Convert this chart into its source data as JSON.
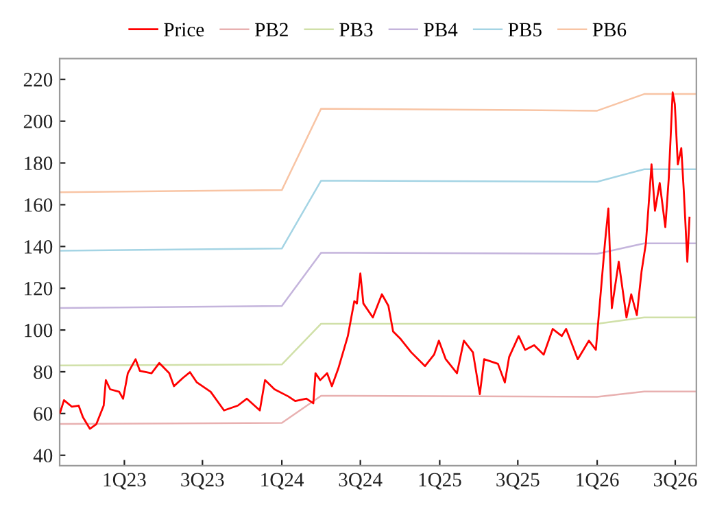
{
  "chart_data": {
    "type": "line",
    "xlim": [
      "2022-08-04",
      "2026-08-19"
    ],
    "xticks": [
      {
        "value": "2023-01-01",
        "label": "1Q23"
      },
      {
        "value": "2023-07-01",
        "label": "3Q23"
      },
      {
        "value": "2024-01-01",
        "label": "1Q24"
      },
      {
        "value": "2024-07-01",
        "label": "3Q24"
      },
      {
        "value": "2025-01-01",
        "label": "1Q25"
      },
      {
        "value": "2025-07-01",
        "label": "3Q25"
      },
      {
        "value": "2026-01-01",
        "label": "1Q26"
      },
      {
        "value": "2026-07-01",
        "label": "3Q26"
      }
    ],
    "ylim": [
      35,
      230
    ],
    "yticks": [
      40,
      60,
      80,
      100,
      120,
      140,
      160,
      180,
      200,
      220
    ],
    "grid": false,
    "legend": "top",
    "marker": "none",
    "line_style": "solid",
    "series": [
      {
        "name": "Price",
        "color": "#ff0000",
        "x": [
          "2022-08-05",
          "2022-08-14",
          "2022-09-01",
          "2022-09-17",
          "2022-09-27",
          "2022-10-13",
          "2022-10-28",
          "2022-11-14",
          "2022-11-19",
          "2022-11-29",
          "2022-12-20",
          "2022-12-29",
          "2023-01-09",
          "2023-01-27",
          "2023-02-06",
          "2023-03-05",
          "2023-03-23",
          "2023-04-15",
          "2023-04-26",
          "2023-05-17",
          "2023-06-02",
          "2023-06-18",
          "2023-07-20",
          "2023-08-20",
          "2023-09-21",
          "2023-10-12",
          "2023-11-11",
          "2023-11-23",
          "2023-12-15",
          "2024-01-16",
          "2024-02-01",
          "2024-02-27",
          "2024-03-14",
          "2024-03-19",
          "2024-03-30",
          "2024-04-15",
          "2024-04-26",
          "2024-05-11",
          "2024-06-02",
          "2024-06-17",
          "2024-06-23",
          "2024-07-01",
          "2024-07-08",
          "2024-07-30",
          "2024-08-20",
          "2024-09-04",
          "2024-09-15",
          "2024-10-01",
          "2024-10-27",
          "2024-11-28",
          "2024-12-19",
          "2024-12-30",
          "2025-01-15",
          "2025-02-10",
          "2025-02-26",
          "2025-03-19",
          "2025-04-04",
          "2025-04-14",
          "2025-05-16",
          "2025-06-01",
          "2025-06-11",
          "2025-07-03",
          "2025-07-18",
          "2025-08-08",
          "2025-08-30",
          "2025-09-20",
          "2025-10-11",
          "2025-10-21",
          "2025-11-17",
          "2025-12-13",
          "2025-12-29",
          "2026-01-19",
          "2026-01-27",
          "2026-02-04",
          "2026-02-20",
          "2026-03-10",
          "2026-03-21",
          "2026-04-03",
          "2026-04-14",
          "2026-04-24",
          "2026-05-07",
          "2026-05-15",
          "2026-05-26",
          "2026-06-08",
          "2026-06-16",
          "2026-06-25",
          "2026-06-30",
          "2026-07-07",
          "2026-07-15",
          "2026-07-21",
          "2026-07-29",
          "2026-08-03"
        ],
        "values": [
          60.4,
          66.4,
          63.3,
          63.8,
          58.2,
          52.7,
          54.9,
          63.8,
          76,
          71.6,
          70.4,
          67.1,
          79.3,
          86,
          80.4,
          79.3,
          84.2,
          79.3,
          73.1,
          77.1,
          79.8,
          74.9,
          70.4,
          61.5,
          63.8,
          67.1,
          61.5,
          76,
          71.6,
          68.2,
          66,
          67.1,
          64.9,
          79.3,
          76,
          79.3,
          73.1,
          81.6,
          97.1,
          113.8,
          112.7,
          127.1,
          112.7,
          106,
          117.1,
          111.6,
          99.3,
          96,
          89.3,
          82.7,
          88.2,
          94.9,
          86,
          79.3,
          94.9,
          89.3,
          69.3,
          86,
          83.8,
          74.9,
          87.1,
          97.1,
          90.5,
          92.7,
          88.2,
          100.5,
          97.1,
          100.5,
          86,
          94.9,
          90.5,
          141.6,
          158.2,
          110.4,
          132.7,
          106,
          117.1,
          107.1,
          128.2,
          141.6,
          179.3,
          157.1,
          170.4,
          149.3,
          172.7,
          213.8,
          208.2,
          179.3,
          187.1,
          166,
          132.7,
          153.8
        ]
      },
      {
        "name": "PB2",
        "color": "#e8b0b0",
        "x": [
          "2022-08-04",
          "2024-01-01",
          "2024-04-01",
          "2026-01-01",
          "2026-04-20",
          "2026-08-19"
        ],
        "values": [
          55,
          55.5,
          68.5,
          68,
          70.5,
          70.5
        ]
      },
      {
        "name": "PB3",
        "color": "#d0e0a8",
        "x": [
          "2022-08-04",
          "2024-01-01",
          "2024-04-01",
          "2026-01-01",
          "2026-04-20",
          "2026-08-19"
        ],
        "values": [
          83,
          83.5,
          103,
          103,
          106,
          106
        ]
      },
      {
        "name": "PB4",
        "color": "#c4b4dc",
        "x": [
          "2022-08-04",
          "2024-01-01",
          "2024-04-01",
          "2026-01-01",
          "2026-04-20",
          "2026-08-19"
        ],
        "values": [
          110.5,
          111.5,
          137,
          136.5,
          141.5,
          141.5
        ]
      },
      {
        "name": "PB5",
        "color": "#a4d4e4",
        "x": [
          "2022-08-04",
          "2024-01-01",
          "2024-04-01",
          "2026-01-01",
          "2026-04-20",
          "2026-08-19"
        ],
        "values": [
          138,
          139,
          171.5,
          171,
          177,
          177
        ]
      },
      {
        "name": "PB6",
        "color": "#f8c4a4",
        "x": [
          "2022-08-04",
          "2024-01-01",
          "2024-04-01",
          "2026-01-01",
          "2026-04-20",
          "2026-08-19"
        ],
        "values": [
          166,
          167,
          206,
          205,
          213,
          213
        ]
      }
    ]
  }
}
